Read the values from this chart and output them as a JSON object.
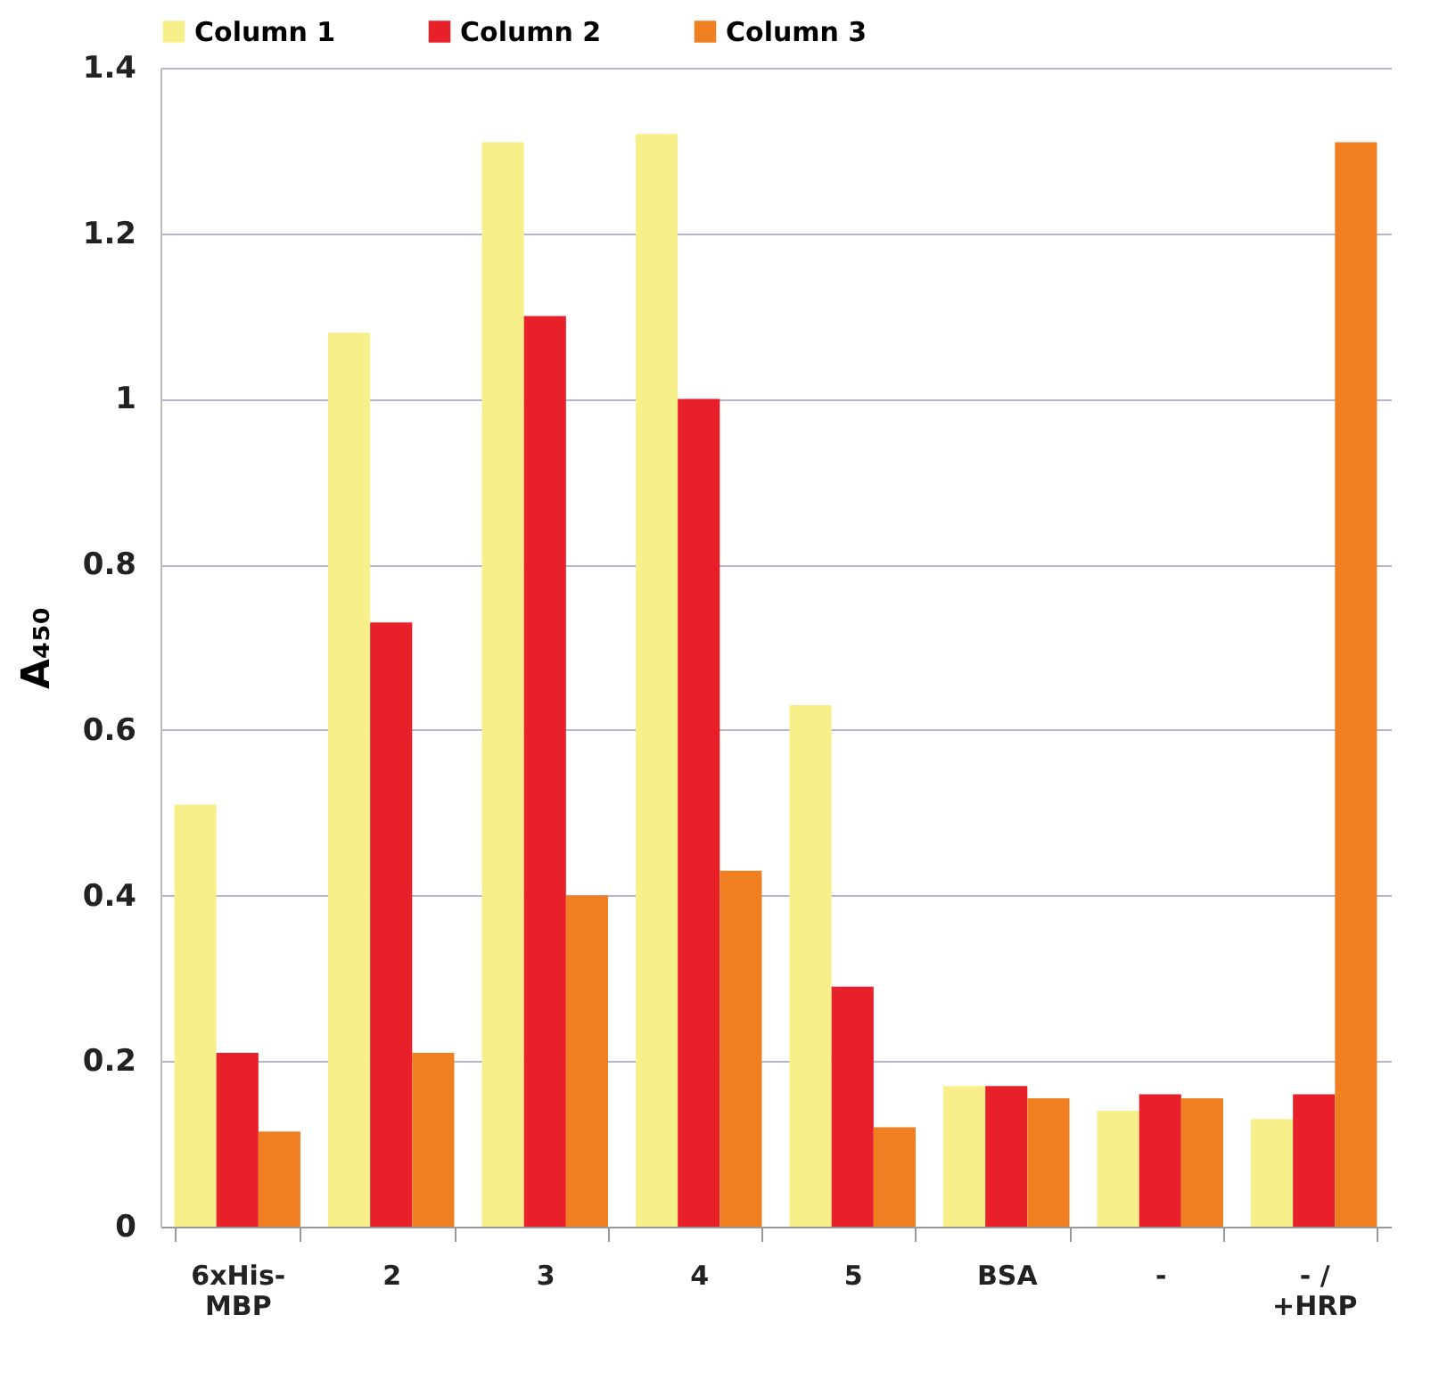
{
  "chart_data": {
    "type": "bar",
    "ylabel": "A₄₅₀",
    "categories": [
      "6xHis-MBP",
      "2",
      "3",
      "4",
      "5",
      "BSA",
      "-",
      "- / +HRP"
    ],
    "series": [
      {
        "name": "Column 1",
        "color": "#f7f08a",
        "values": [
          0.51,
          1.08,
          1.31,
          1.32,
          0.63,
          0.17,
          0.14,
          0.13
        ]
      },
      {
        "name": "Column 2",
        "color": "#e8202a",
        "values": [
          0.21,
          0.73,
          1.1,
          1.0,
          0.29,
          0.17,
          0.16,
          0.16
        ]
      },
      {
        "name": "Column 3",
        "color": "#f07f22",
        "values": [
          0.115,
          0.21,
          0.4,
          0.43,
          0.12,
          0.155,
          0.155,
          1.31
        ]
      }
    ],
    "ylim": [
      0,
      1.4
    ],
    "yticks": [
      0,
      0.2,
      0.4,
      0.6,
      0.8,
      1,
      1.2,
      1.4
    ],
    "grid": "y",
    "legend": "top"
  }
}
